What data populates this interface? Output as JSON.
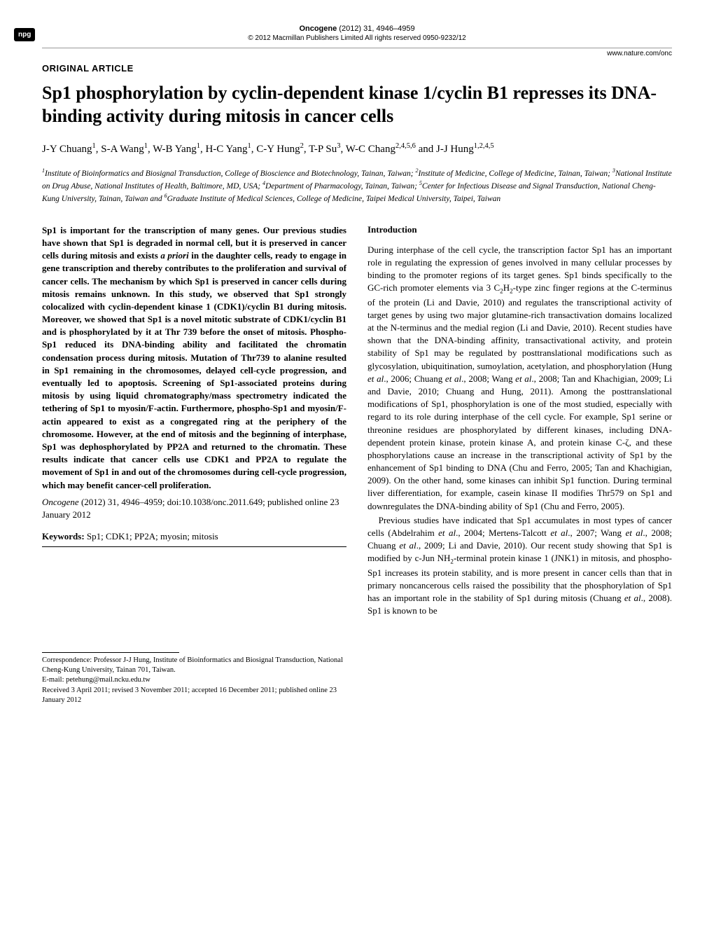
{
  "badge": "npg",
  "header": {
    "journal": "Oncogene",
    "year_vol_pages": "(2012) 31, 4946–4959",
    "copyright": "© 2012 Macmillan Publishers Limited   All rights reserved 0950-9232/12",
    "website": "www.nature.com/onc"
  },
  "article_type": "ORIGINAL ARTICLE",
  "title": "Sp1 phosphorylation by cyclin-dependent kinase 1/cyclin B1 represses its DNA-binding activity during mitosis in cancer cells",
  "authors_html": "J-Y Chuang<sup>1</sup>, S-A Wang<sup>1</sup>, W-B Yang<sup>1</sup>, H-C Yang<sup>1</sup>, C-Y Hung<sup>2</sup>, T-P Su<sup>3</sup>, W-C Chang<sup>2,4,5,6</sup> and J-J Hung<sup>1,2,4,5</sup>",
  "affiliations_html": "<sup>1</sup>Institute of Bioinformatics and Biosignal Transduction, College of Bioscience and Biotechnology, Tainan, Taiwan; <sup>2</sup>Institute of Medicine, College of Medicine, Tainan, Taiwan; <sup>3</sup>National Institute on Drug Abuse, National Institutes of Health, Baltimore, MD, USA; <sup>4</sup>Department of Pharmacology, Tainan, Taiwan; <sup>5</sup>Center for Infectious Disease and Signal Transduction, National Cheng-Kung University, Tainan, Taiwan and <sup>6</sup>Graduate Institute of Medical Sciences, College of Medicine, Taipei Medical University, Taipei, Taiwan",
  "abstract_html": "Sp1 is important for the transcription of many genes. Our previous studies have shown that Sp1 is degraded in normal cell, but it is preserved in cancer cells during mitosis and exists <i>a priori</i> in the daughter cells, ready to engage in gene transcription and thereby contributes to the proliferation and survival of cancer cells. The mechanism by which Sp1 is preserved in cancer cells during mitosis remains unknown. In this study, we observed that Sp1 strongly colocalized with cyclin-dependent kinase 1 (CDK1)/cyclin B1 during mitosis. Moreover, we showed that Sp1 is a novel mitotic substrate of CDK1/cyclin B1 and is phosphorylated by it at Thr 739 before the onset of mitosis. Phospho-Sp1 reduced its DNA-binding ability and facilitated the chromatin condensation process during mitosis. Mutation of Thr739 to alanine resulted in Sp1 remaining in the chromosomes, delayed cell-cycle progression, and eventually led to apoptosis. Screening of Sp1-associated proteins during mitosis by using liquid chromatography/mass spectrometry indicated the tethering of Sp1 to myosin/F-actin. Furthermore, phospho-Sp1 and myosin/F-actin appeared to exist as a congregated ring at the periphery of the chromosome. However, at the end of mitosis and the beginning of interphase, Sp1 was dephosphorylated by PP2A and returned to the chromatin. These results indicate that cancer cells use CDK1 and PP2A to regulate the movement of Sp1 in and out of the chromosomes during cell-cycle progression, which may benefit cancer-cell proliferation.",
  "citation": {
    "journal": "Oncogene",
    "details": "(2012) 31, 4946–4959; doi:10.1038/onc.2011.649; published online 23 January 2012"
  },
  "keywords": {
    "label": "Keywords:",
    "text": "Sp1; CDK1; PP2A; myosin; mitosis"
  },
  "intro_heading": "Introduction",
  "intro_p1_html": "During interphase of the cell cycle, the transcription factor Sp1 has an important role in regulating the expression of genes involved in many cellular processes by binding to the promoter regions of its target genes. Sp1 binds specifically to the GC-rich promoter elements via 3 C<sub>2</sub>H<sub>2</sub>-type zinc finger regions at the C-terminus of the protein (Li and Davie, 2010) and regulates the transcriptional activity of target genes by using two major glutamine-rich transactivation domains localized at the N-terminus and the medial region (Li and Davie, 2010). Recent studies have shown that the DNA-binding affinity, transactivational activity, and protein stability of Sp1 may be regulated by posttranslational modifications such as glycosylation, ubiquitination, sumoylation, acetylation, and phosphorylation (Hung <i>et al</i>., 2006; Chuang <i>et al</i>., 2008; Wang <i>et al</i>., 2008; Tan and Khachigian, 2009; Li and Davie, 2010; Chuang and Hung, 2011). Among the posttranslational modifications of Sp1, phosphorylation is one of the most studied, especially with regard to its role during interphase of the cell cycle. For example, Sp1 serine or threonine residues are phosphorylated by different kinases, including DNA-dependent protein kinase, protein kinase A, and protein kinase C-ζ, and these phosphorylations cause an increase in the transcriptional activity of Sp1 by the enhancement of Sp1 binding to DNA (Chu and Ferro, 2005; Tan and Khachigian, 2009). On the other hand, some kinases can inhibit Sp1 function. During terminal liver differentiation, for example, casein kinase II modifies Thr579 on Sp1 and downregulates the DNA-binding ability of Sp1 (Chu and Ferro, 2005).",
  "intro_p2_html": "Previous studies have indicated that Sp1 accumulates in most types of cancer cells (Abdelrahim <i>et al</i>., 2004; Mertens-Talcott <i>et al</i>., 2007; Wang <i>et al</i>., 2008; Chuang <i>et al</i>., 2009; Li and Davie, 2010). Our recent study showing that Sp1 is modified by c-Jun NH<sub>2</sub>-terminal protein kinase 1 (JNK1) in mitosis, and phospho-Sp1 increases its protein stability, and is more present in cancer cells than that in primary noncancerous cells raised the possibility that the phosphorylation of Sp1 has an important role in the stability of Sp1 during mitosis (Chuang <i>et al</i>., 2008). Sp1 is known to be",
  "correspondence": {
    "line1": "Correspondence: Professor J-J Hung, Institute of Bioinformatics and Biosignal Transduction, National Cheng-Kung University, Tainan 701, Taiwan.",
    "email": "E-mail: petehung@mail.ncku.edu.tw",
    "received": "Received 3 April 2011; revised 3 November 2011; accepted 16 December 2011; published online 23 January 2012"
  },
  "colors": {
    "text": "#000000",
    "bg": "#ffffff",
    "rule": "#999999"
  }
}
